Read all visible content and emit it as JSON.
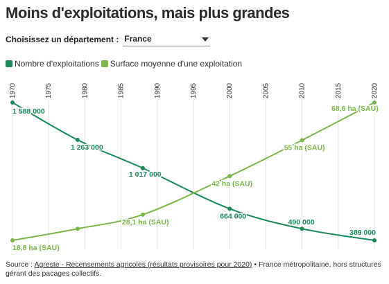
{
  "title": "Moins d'exploitations, mais plus grandes",
  "selector": {
    "label": "Choisissez un département :",
    "value": "France"
  },
  "legend": [
    {
      "label": "Nombre d'exploitations",
      "color": "#1b8a5a"
    },
    {
      "label": "Surface moyenne d'une exploitation",
      "color": "#7ab648"
    }
  ],
  "source": {
    "prefix": "Source : ",
    "link_text": "Agreste - Recensements agricoles (résultats provisoires pour 2020)",
    "suffix": " • France métropolitaine, hors structures gérant des pacages collectifs."
  },
  "chart_data": {
    "type": "line",
    "x_ticks": [
      "1970",
      "1975",
      "1980",
      "1985",
      "1990",
      "1995",
      "2000",
      "2005",
      "2010",
      "2015",
      "2020"
    ],
    "xlim": [
      1970,
      2020
    ],
    "series": [
      {
        "name": "Nombre d'exploitations",
        "color": "#1b8a5a",
        "x": [
          1970,
          1979,
          1988,
          2000,
          2010,
          2020
        ],
        "y": [
          1588000,
          1263000,
          1017000,
          664000,
          490000,
          389000
        ],
        "labels": [
          "1 588 000",
          "1 263 000",
          "1 017 000",
          "664 000",
          "490 000",
          "389 000"
        ],
        "ylim": [
          389000,
          1588000
        ]
      },
      {
        "name": "Surface moyenne d'une exploitation",
        "color": "#7ab648",
        "x": [
          1970,
          1979,
          1988,
          2000,
          2010,
          2020
        ],
        "y": [
          18.8,
          23.0,
          28.1,
          42.0,
          55.0,
          68.6
        ],
        "labels": [
          "18,8 ha (SAU)",
          "",
          "28,1 ha (SAU)",
          "42 ha (SAU)",
          "55 ha (SAU)",
          "68,6 ha (SAU)"
        ],
        "ylim": [
          18.8,
          68.6
        ]
      }
    ],
    "grid": "vertical"
  }
}
